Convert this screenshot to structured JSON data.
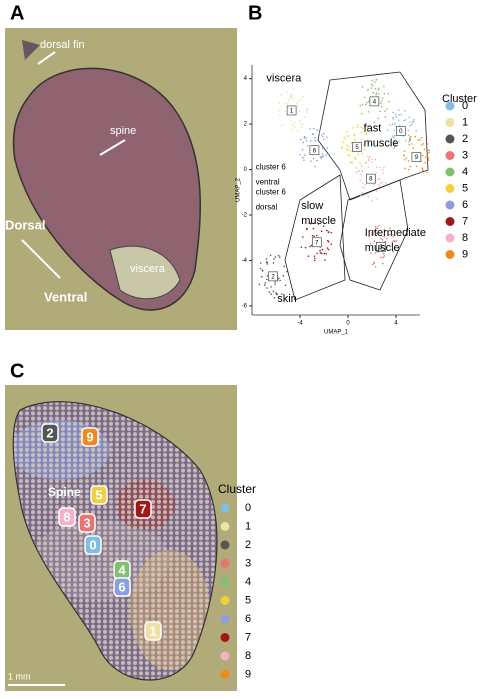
{
  "panel_labels": [
    "A",
    "B",
    "C"
  ],
  "panel_a": {
    "annotations": [
      "dorsal fin",
      "spine",
      "Dorsal",
      "Ventral",
      "viscera"
    ]
  },
  "chart_data": {
    "type": "scatter",
    "x_label": "UMAP_1",
    "y_label": "UMAP_2",
    "legend_title": "Cluster",
    "xlim": [
      -8,
      6
    ],
    "ylim": [
      -6.4,
      4.6
    ],
    "xticks": [
      -4,
      0,
      4
    ],
    "yticks": [
      -6,
      -4,
      -2,
      0,
      2,
      4
    ],
    "regions": [
      {
        "lines": [
          "viscera"
        ],
        "x": -6.8,
        "y": 4.0
      },
      {
        "lines": [
          "fast",
          "muscle"
        ],
        "x": 1.3,
        "y": 1.8
      },
      {
        "lines": [
          "cluster 6",
          "ventral"
        ],
        "x": -7.7,
        "y": 0.1
      },
      {
        "lines": [
          "cluster 6",
          "dorsal"
        ],
        "x": -7.7,
        "y": -1.0
      },
      {
        "lines": [
          "slow",
          "muscle"
        ],
        "x": -3.9,
        "y": -1.6
      },
      {
        "lines": [
          "Intermediate",
          "muscle"
        ],
        "x": 1.4,
        "y": -2.8
      },
      {
        "lines": [
          "skin"
        ],
        "x": -5.9,
        "y": -5.7
      }
    ],
    "series": [
      {
        "name": "0",
        "color": "#7fbfe0",
        "x": [
          4.4
        ],
        "y": [
          1.7
        ]
      },
      {
        "name": "1",
        "color": "#efe0a6",
        "x": [
          -4.7
        ],
        "y": [
          2.6
        ]
      },
      {
        "name": "2",
        "color": "#555555",
        "x": [
          -6.25
        ],
        "y": [
          -4.7
        ]
      },
      {
        "name": "3",
        "color": "#e87474",
        "x": [
          2.75
        ],
        "y": [
          -3.4
        ]
      },
      {
        "name": "4",
        "color": "#82c070",
        "x": [
          2.2
        ],
        "y": [
          3.0
        ]
      },
      {
        "name": "5",
        "color": "#f0d040",
        "x": [
          0.75
        ],
        "y": [
          1.0
        ]
      },
      {
        "name": "6",
        "color": "#8a9ee0",
        "x": [
          -2.8
        ],
        "y": [
          0.85
        ]
      },
      {
        "name": "7",
        "color": "#a01818",
        "x": [
          -2.6
        ],
        "y": [
          -3.2
        ]
      },
      {
        "name": "8",
        "color": "#f6b0c8",
        "x": [
          1.9
        ],
        "y": [
          -0.4
        ]
      },
      {
        "name": "9",
        "color": "#f08a20",
        "x": [
          5.7
        ],
        "y": [
          0.55
        ]
      }
    ]
  },
  "panel_c": {
    "annotation": "Spine",
    "scale_bar": "1 mm"
  }
}
